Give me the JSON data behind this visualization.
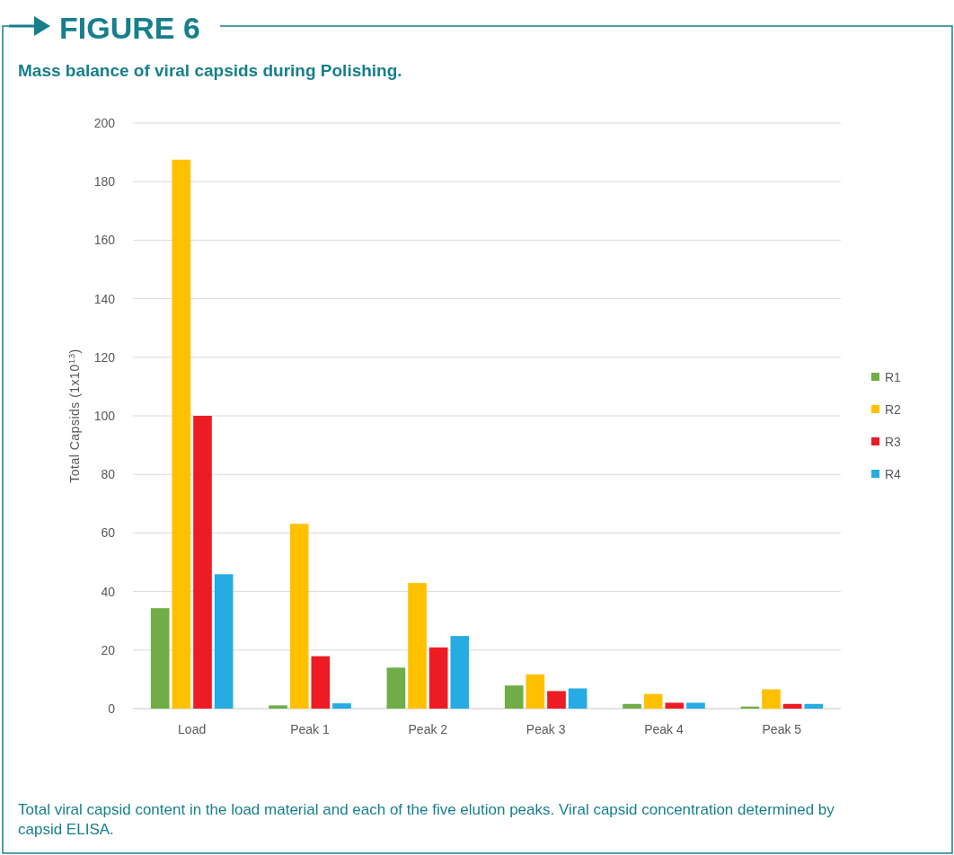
{
  "chart_data": {
    "type": "bar",
    "title": "FIGURE 6",
    "subtitle": "Mass balance of viral capsids during Polishing.",
    "ylabel": "Total Capsids (1x10$^{13}$)",
    "categories": [
      "Load",
      "Peak 1",
      "Peak 2",
      "Peak 3",
      "Peak 4",
      "Peak 5"
    ],
    "series": [
      {
        "name": "R1",
        "color": "#70ad47",
        "values": [
          34.3,
          1.1,
          14,
          7.9,
          1.6,
          0.7
        ]
      },
      {
        "name": "R2",
        "color": "#ffc000",
        "values": [
          187.5,
          63.1,
          42.9,
          11.7,
          5,
          6.6
        ]
      },
      {
        "name": "R3",
        "color": "#ed1c24",
        "values": [
          100,
          17.9,
          20.9,
          6,
          2,
          1.6
        ]
      },
      {
        "name": "R4",
        "color": "#26abe2",
        "values": [
          45.9,
          1.8,
          24.8,
          6.9,
          2,
          1.6
        ]
      }
    ],
    "ylim": [
      0,
      200
    ],
    "yticks": [
      0,
      20,
      40,
      60,
      80,
      100,
      120,
      140,
      160,
      180,
      200
    ],
    "grid": "y",
    "legend": "right",
    "annotations": [
      "Total viral capsid content in the load material and each of the five elution peaks. Viral capsid concentration determined by capsid ELISA."
    ]
  }
}
